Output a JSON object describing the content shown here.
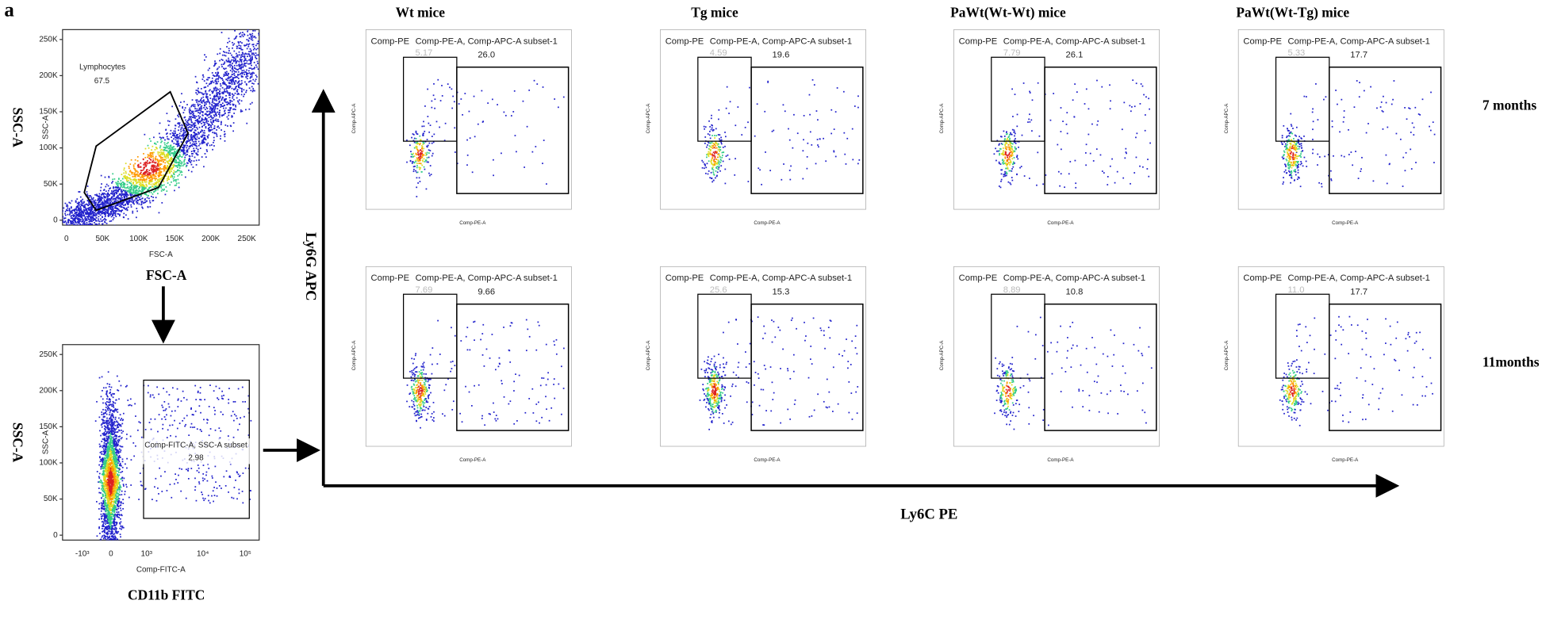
{
  "panel_label": "a",
  "gating": {
    "fsc_plot": {
      "yticks": [
        "250K",
        "200K",
        "150K",
        "100K",
        "50K",
        "0"
      ],
      "xticks": [
        "0",
        "50K",
        "100K",
        "150K",
        "200K",
        "250K"
      ],
      "x_label": "FSC-A",
      "y_label": "SSC-A",
      "gate_name": "Lymphocytes",
      "gate_value": "67.5",
      "x_title": "FSC-A",
      "y_title": "SSC-A"
    },
    "fitc_plot": {
      "yticks": [
        "250K",
        "200K",
        "150K",
        "100K",
        "50K",
        "0"
      ],
      "xticks": [
        "-10³",
        "0",
        "10³",
        "10⁴",
        "10⁵"
      ],
      "x_label": "Comp-FITC-A",
      "y_label": "SSC-A",
      "gate_name": "Comp-FITC-A, SSC-A subset",
      "gate_value": "2.98",
      "x_title": "CD11b FITC",
      "y_title": "SSC-A"
    }
  },
  "grid": {
    "y_title": "Ly6G APC",
    "x_title": "Ly6C PE",
    "columns": [
      "Wt mice",
      "Tg mice",
      "PaWt(Wt-Wt) mice",
      "PaWt(Wt-Tg) mice"
    ],
    "rows": [
      "7 months",
      "11months"
    ],
    "plot_parent": "Comp-PE",
    "subset_name": "Comp-PE-A, Comp-APC-A subset-1",
    "plot_x_label": "Comp-PE-A",
    "plot_y_label": "Comp-APC-A",
    "values": [
      [
        {
          "left": "5.17",
          "right": "26.0"
        },
        {
          "left": "4.59",
          "right": "19.6"
        },
        {
          "left": "7.79",
          "right": "26.1"
        },
        {
          "left": "5.33",
          "right": "17.7"
        }
      ],
      [
        {
          "left": "7.69",
          "right": "9.66"
        },
        {
          "left": "25.6",
          "right": "15.3"
        },
        {
          "left": "8.89",
          "right": "10.8"
        },
        {
          "left": "11.0",
          "right": "17.7"
        }
      ]
    ]
  }
}
